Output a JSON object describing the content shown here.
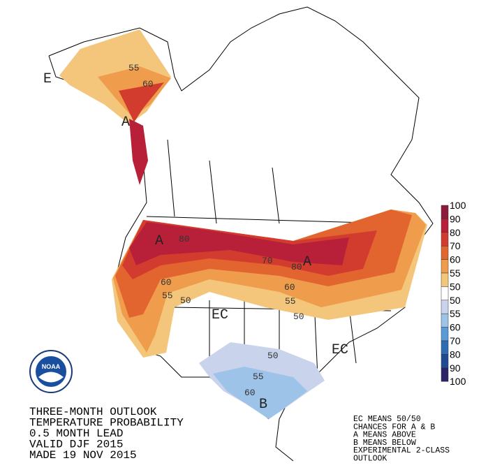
{
  "title_lines": [
    "THREE-MONTH OUTLOOK",
    "TEMPERATURE PROBABILITY",
    "0.5 MONTH LEAD",
    "VALID DJF 2015",
    "MADE 19 NOV 2015"
  ],
  "notes": [
    "EC MEANS 50/50",
    "CHANCES FOR A & B",
    "A MEANS ABOVE",
    "B MEANS BELOW",
    "EXPERIMENTAL 2-CLASS",
    "OUTLOOK"
  ],
  "logo": "NOAA",
  "legend": {
    "labels": [
      "100",
      "90",
      "80",
      "70",
      "60",
      "55",
      "50",
      "50",
      "55",
      "60",
      "70",
      "80",
      "90",
      "100"
    ],
    "colors": [
      "#8c1b3c",
      "#b8203a",
      "#d23c2e",
      "#e2652f",
      "#ef9c4c",
      "#f4c67c",
      "#ffffff",
      "#c9d3ec",
      "#9dc3e8",
      "#5b9bd5",
      "#2e6db3",
      "#1f4b93",
      "#2c2266"
    ]
  },
  "map_labels": [
    "E",
    "55",
    "60",
    "A",
    "A",
    "80",
    "70",
    "80",
    "A",
    "60",
    "55",
    "50",
    "EC",
    "60",
    "55",
    "50",
    "50",
    "EC",
    "55",
    "60",
    "B"
  ]
}
